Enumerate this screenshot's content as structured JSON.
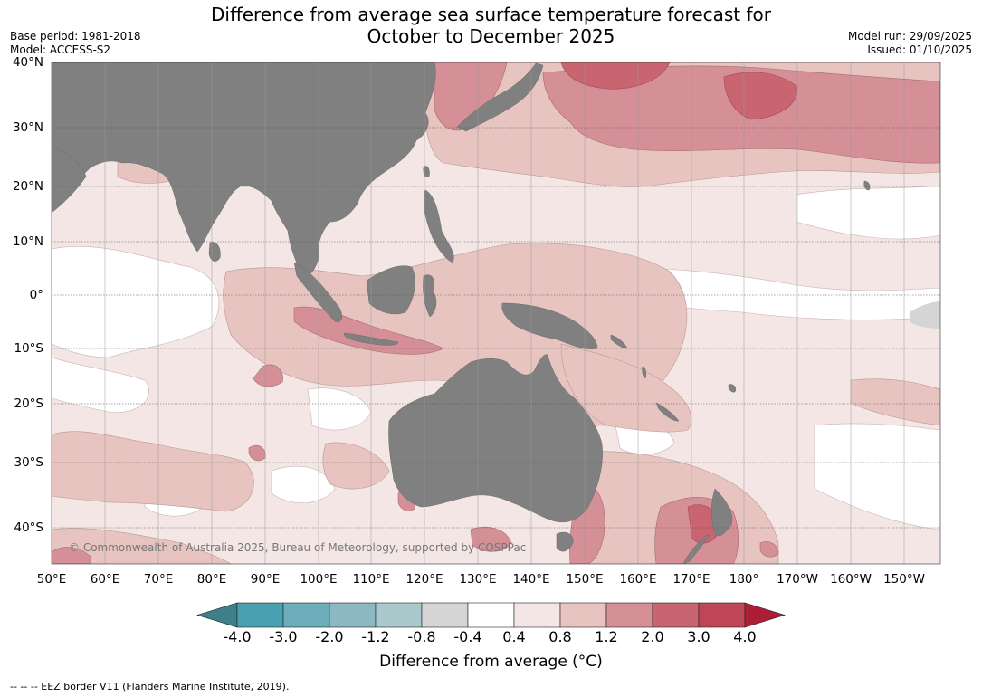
{
  "title_line1": "Difference from average sea surface temperature forecast for",
  "title_line2": "October to December 2025",
  "base_period": "Base period: 1981-2018",
  "model": "Model: ACCESS-S2",
  "model_run": "Model run: 29/09/2025",
  "issued": "Issued: 01/10/2025",
  "copyright": "© Commonwealth of Australia 2025, Bureau of Meteorology, supported by COSPPac",
  "footer": "--  --  -- EEZ border V11 (Flanders Marine Institute, 2019).",
  "lat_labels": [
    "40°N",
    "30°N",
    "20°N",
    "10°N",
    "0°",
    "10°S",
    "20°S",
    "30°S",
    "40°S"
  ],
  "lon_labels": [
    "50°E",
    "60°E",
    "70°E",
    "80°E",
    "90°E",
    "100°E",
    "110°E",
    "120°E",
    "130°E",
    "140°E",
    "150°E",
    "160°E",
    "170°E",
    "180°",
    "170°W",
    "160°W",
    "150°W"
  ],
  "colorbar": {
    "title": "Difference from average (°C)",
    "ticks": [
      "-4.0",
      "-3.0",
      "-2.0",
      "-1.2",
      "-0.8",
      "-0.4",
      "0.4",
      "0.8",
      "1.2",
      "2.0",
      "3.0",
      "4.0"
    ],
    "colors": [
      "#3f7f88",
      "#49a0b0",
      "#6cafbb",
      "#8bb8c3",
      "#a9c9cc",
      "#d5d5d5",
      "#ffffff",
      "#f4e6e5",
      "#e7c4c0",
      "#d58f96",
      "#c86570",
      "#bf4655",
      "#ab1e36"
    ]
  },
  "colors": {
    "land": "#808080",
    "anomaly_0_4_0_8": "#f4e6e5",
    "anomaly_0_8_1_2": "#e7c4c0",
    "anomaly_1_2_2_0": "#d58f96",
    "anomaly_2_0_3_0": "#c86570"
  }
}
